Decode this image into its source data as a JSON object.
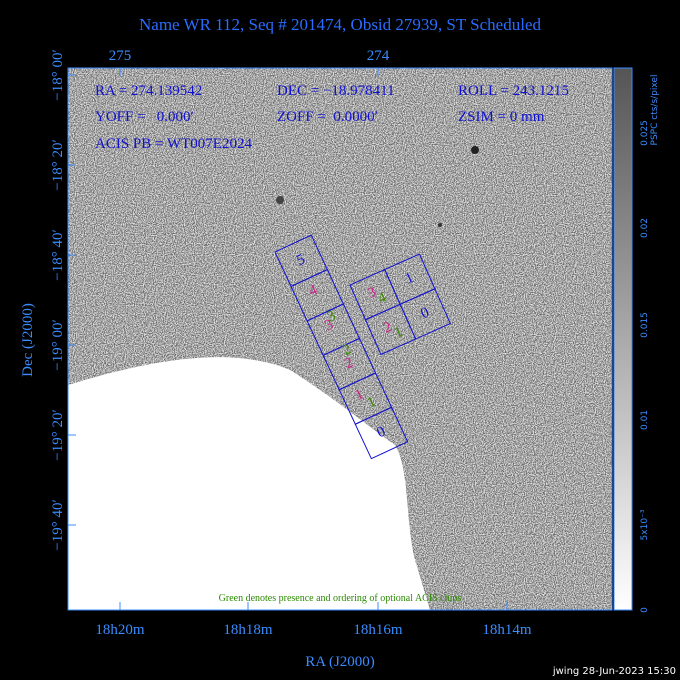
{
  "title": "Name WR 112, Seq # 201474, Obsid 27939, ST Scheduled",
  "top_axis": {
    "labels": [
      "275",
      "274"
    ]
  },
  "left_axis": {
    "title": "Dec (J2000)",
    "labels": [
      "−18° 00′",
      "−18° 20′",
      "−18° 40′",
      "−19° 00′",
      "−19° 20′",
      "−19° 40′"
    ]
  },
  "bottom_axis": {
    "title": "RA (J2000)",
    "labels": [
      "18h20m",
      "18h18m",
      "18h16m",
      "18h14m"
    ]
  },
  "info": {
    "ra": "RA = 274.139542",
    "dec": "DEC = −18.978411",
    "roll": "ROLL = 243.1215",
    "yoff": "YOFF =   0.000′",
    "zoff": "ZOFF =  0.0000′",
    "zsim": "ZSIM = 0 mm",
    "acis": "ACIS PB = WT007E2024"
  },
  "note": "Green denotes presence and ordering of optional ACIS chips",
  "colorbar": {
    "title": "PSPC cts/s/pixel",
    "labels": [
      "0",
      "5x10⁻³",
      "0.01",
      "0.015",
      "0.02",
      "0.025"
    ]
  },
  "s_array": {
    "chips": [
      "5",
      "4",
      "3",
      "2",
      "1",
      "0"
    ],
    "optional": [
      "3",
      "2",
      "1"
    ]
  },
  "i_array": {
    "chips": [
      "3",
      "1",
      "2",
      "0"
    ],
    "optional": [
      "4",
      "1"
    ]
  },
  "footer": "jwing 28-Jun-2023 15:30"
}
